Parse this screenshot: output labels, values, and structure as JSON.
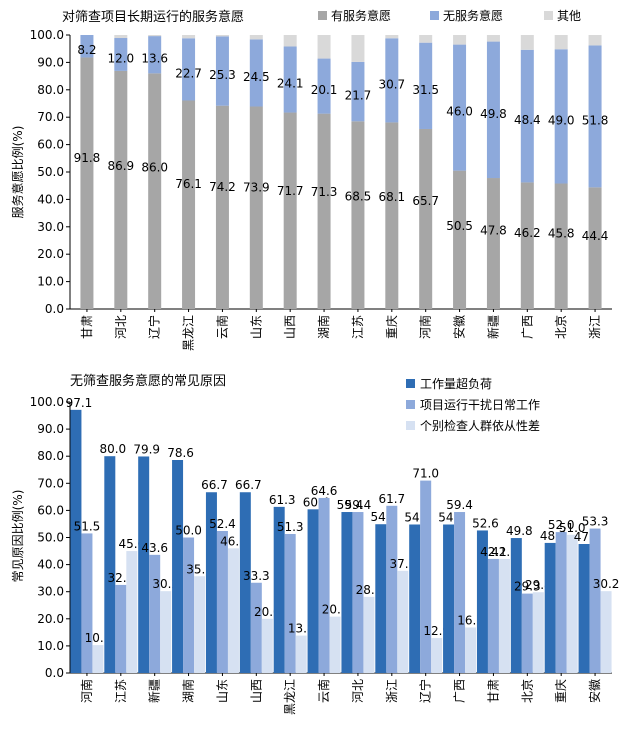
{
  "chart_data": [
    {
      "type": "bar",
      "stacked": true,
      "title": "对筛查项目长期运行的服务意愿",
      "ylabel": "服务意愿比例(%)",
      "xlabel": "",
      "ylim": [
        0,
        100
      ],
      "yticks": [
        "0.0",
        "10.0",
        "20.0",
        "30.0",
        "40.0",
        "50.0",
        "60.0",
        "70.0",
        "80.0",
        "90.0",
        "100.0"
      ],
      "legend_position": "top",
      "grid": false,
      "categories": [
        "甘肃",
        "河北",
        "辽宁",
        "黑龙江",
        "云南",
        "山东",
        "山西",
        "湖南",
        "江苏",
        "重庆",
        "河南",
        "安徽",
        "新疆",
        "广西",
        "北京",
        "浙江"
      ],
      "series": [
        {
          "name": "有服务意愿",
          "color": "#a6a6a6",
          "values": [
            91.8,
            86.9,
            86.0,
            76.1,
            74.2,
            73.9,
            71.7,
            71.3,
            68.5,
            68.1,
            65.7,
            50.5,
            47.8,
            46.2,
            45.8,
            44.4
          ]
        },
        {
          "name": "无服务意愿",
          "color": "#8da9db",
          "values": [
            8.2,
            12.0,
            13.6,
            22.7,
            25.3,
            24.5,
            24.1,
            20.1,
            21.7,
            30.7,
            31.5,
            46.0,
            49.8,
            48.4,
            49.0,
            51.8
          ]
        },
        {
          "name": "其他",
          "color": "#d9d9d9",
          "values": [
            0.0,
            1.1,
            0.4,
            1.2,
            0.5,
            1.6,
            4.2,
            8.6,
            9.8,
            1.2,
            2.8,
            3.5,
            2.4,
            5.4,
            5.2,
            3.8
          ]
        }
      ],
      "labeled_series": [
        "有服务意愿",
        "无服务意愿"
      ]
    },
    {
      "type": "bar",
      "stacked": false,
      "title": "无筛查服务意愿的常见原因",
      "ylabel": "常见原因比例(%)",
      "xlabel": "",
      "ylim": [
        0,
        100
      ],
      "yticks": [
        "0.0",
        "10.0",
        "20.0",
        "30.0",
        "40.0",
        "50.0",
        "60.0",
        "70.0",
        "80.0",
        "90.0",
        "100.0"
      ],
      "legend_position": "top-right",
      "grid": false,
      "categories": [
        "河南",
        "江苏",
        "新疆",
        "湖南",
        "山东",
        "山西",
        "黑龙江",
        "云南",
        "河北",
        "浙江",
        "辽宁",
        "广西",
        "甘肃",
        "北京",
        "重庆",
        "安徽"
      ],
      "series": [
        {
          "name": "工作量超负荷",
          "color": "#2e6db4",
          "values": [
            97.1,
            80.0,
            79.9,
            78.6,
            66.7,
            66.7,
            61.3,
            60.4,
            59.4,
            54.9,
            54.8,
            54.8,
            52.6,
            49.8,
            48.0,
            47.6
          ]
        },
        {
          "name": "项目运行干扰日常工作",
          "color": "#8da9db",
          "values": [
            51.5,
            32.5,
            43.6,
            50.0,
            52.4,
            33.3,
            51.3,
            64.6,
            59.4,
            61.7,
            71.0,
            59.4,
            42.1,
            29.3,
            52.0,
            53.3
          ]
        },
        {
          "name": "个别检查人群依从性差",
          "color": "#d6e1f2",
          "values": [
            10.3,
            45.0,
            30.2,
            35.7,
            46.0,
            20.0,
            13.8,
            20.8,
            28.1,
            37.7,
            12.9,
            16.8,
            42.1,
            29.8,
            51.0,
            30.2
          ]
        }
      ]
    }
  ]
}
